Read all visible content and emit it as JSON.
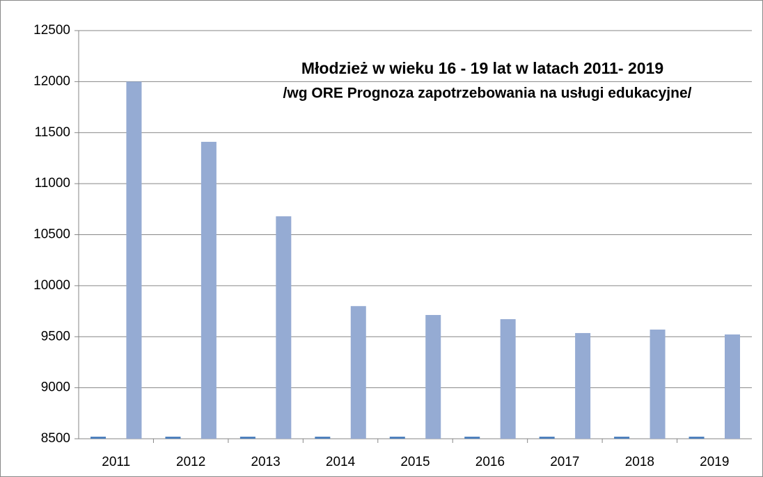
{
  "chart_data": {
    "type": "bar",
    "title": "Młodzież w wieku 16 - 19 lat w latach 2011- 2019",
    "subtitle": "/wg ORE Prognoza zapotrzebowania na usługi edukacyjne/",
    "categories": [
      "2011",
      "2012",
      "2013",
      "2014",
      "2015",
      "2016",
      "2017",
      "2018",
      "2019"
    ],
    "series": [
      {
        "color": "#4f81bd",
        "values": [
          2011,
          2012,
          2013,
          2014,
          2015,
          2016,
          2017,
          2018,
          2019
        ]
      },
      {
        "color": "#95abd3",
        "values": [
          12000,
          11410,
          10680,
          9800,
          9713,
          9672,
          9536,
          9570,
          9522
        ]
      }
    ],
    "ylim": [
      8500,
      12500
    ],
    "yticks": [
      8500,
      9000,
      9500,
      10000,
      10500,
      11000,
      11500,
      12000,
      12500
    ],
    "grid": true
  }
}
